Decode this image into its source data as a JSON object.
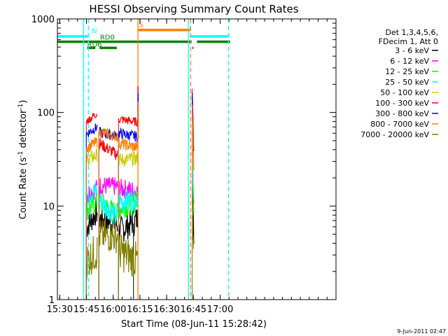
{
  "chart_data": {
    "type": "line",
    "title": "HESSI Observing Summary Count Rates",
    "xlabel": "Start Time (08-Jun-11 15:28:42)",
    "ylabel_main": "Count Rate (s",
    "ylabel_sup1": "-1",
    "ylabel_mid": " detector",
    "ylabel_sup2": "-1",
    "ylabel_end": ")",
    "y_scale": "log",
    "xlim_min": [
      928.7,
      1085
    ],
    "ylim": [
      1,
      1000
    ],
    "x_ticks": [
      {
        "label": "15:30",
        "value": 930
      },
      {
        "label": "15:45",
        "value": 945
      },
      {
        "label": "16:00",
        "value": 960
      },
      {
        "label": "16:15",
        "value": 975
      },
      {
        "label": "16:30",
        "value": 990
      },
      {
        "label": "16:45",
        "value": 1005
      },
      {
        "label": "17:00",
        "value": 1020
      }
    ],
    "y_ticks": [
      {
        "label": "1",
        "value": 1
      },
      {
        "label": "10",
        "value": 10
      },
      {
        "label": "100",
        "value": 100
      },
      {
        "label": "1000",
        "value": 1000
      }
    ],
    "legend": {
      "placement": "right",
      "header": [
        "Det 1,3,4,5,6,",
        "FDecim 1, Att 0"
      ]
    },
    "series": [
      {
        "name": "3 - 6 keV",
        "color": "#000000",
        "segments": [
          {
            "x": [
              944.9,
              951.0
            ],
            "y": [
              5.8,
              8.8
            ]
          },
          {
            "x": [
              952.0,
              962.4
            ],
            "y": [
              7.4,
              6.3
            ]
          },
          {
            "x": [
              963.0,
              971.2
            ],
            "y": [
              5.3,
              6.8
            ]
          },
          {
            "x": [
              971.4,
              973.6
            ],
            "y": [
              6.5,
              7.4
            ]
          },
          {
            "x": [
              1004.3,
              1005.2
            ],
            "y": [
              25,
              4.5
            ]
          }
        ]
      },
      {
        "name": "6 - 12 keV",
        "color": "#ff00ff",
        "segments": [
          {
            "x": [
              944.9,
              951.0
            ],
            "y": [
              13.2,
              15.6
            ]
          },
          {
            "x": [
              952.0,
              962.4
            ],
            "y": [
              16.6,
              16.0
            ]
          },
          {
            "x": [
              963.0,
              973.6
            ],
            "y": [
              15.5,
              14.4
            ]
          },
          {
            "x": [
              1004.3,
              1005.2
            ],
            "y": [
              43,
              12
            ]
          }
        ]
      },
      {
        "name": "12 - 25 keV",
        "color": "#00ff00",
        "segments": [
          {
            "x": [
              944.9,
              951.0
            ],
            "y": [
              9.0,
              11.2
            ]
          },
          {
            "x": [
              952.0,
              962.4
            ],
            "y": [
              10.8,
              8.2
            ]
          },
          {
            "x": [
              963.0,
              973.6
            ],
            "y": [
              9.4,
              11.0
            ]
          },
          {
            "x": [
              1004.3,
              1005.2
            ],
            "y": [
              35,
              9
            ]
          }
        ]
      },
      {
        "name": "25 - 50 keV",
        "color": "#00ffff",
        "segments": [
          {
            "x": [
              944.9,
              951.0
            ],
            "y": [
              13.0,
              14.8
            ]
          },
          {
            "x": [
              952.0,
              962.4
            ],
            "y": [
              11.9,
              7.5
            ]
          },
          {
            "x": [
              963.0,
              973.6
            ],
            "y": [
              11.2,
              12.0
            ]
          },
          {
            "x": [
              1004.3,
              1005.2
            ],
            "y": [
              40,
              11
            ]
          }
        ]
      },
      {
        "name": "50 - 100 keV",
        "color": "#cccc00",
        "segments": [
          {
            "x": [
              944.9,
              951.0
            ],
            "y": [
              31,
              35
            ]
          },
          {
            "x": [
              952.0,
              962.4
            ],
            "y": [
              62,
              59
            ]
          },
          {
            "x": [
              963.0,
              973.6
            ],
            "y": [
              31,
              32
            ]
          },
          {
            "x": [
              1004.3,
              1005.2
            ],
            "y": [
              95,
              23
            ]
          }
        ]
      },
      {
        "name": "100 - 300 keV",
        "color": "#ff0000",
        "segments": [
          {
            "x": [
              944.9,
              951.0
            ],
            "y": [
              80,
              98
            ]
          },
          {
            "x": [
              952.0,
              962.4
            ],
            "y": [
              47,
              35
            ]
          },
          {
            "x": [
              963.0,
              973.6
            ],
            "y": [
              85,
              79
            ]
          },
          {
            "x": [
              1004.3,
              1005.2
            ],
            "y": [
              180,
              40
            ]
          }
        ]
      },
      {
        "name": "300 - 800 keV",
        "color": "#0000ff",
        "segments": [
          {
            "x": [
              944.9,
              951.0
            ],
            "y": [
              59,
              70
            ]
          },
          {
            "x": [
              952.0,
              962.4
            ],
            "y": [
              61,
              56
            ]
          },
          {
            "x": [
              963.0,
              973.6
            ],
            "y": [
              60,
              55
            ]
          },
          {
            "x": [
              1004.3,
              1005.2
            ],
            "y": [
              160,
              36
            ]
          }
        ]
      },
      {
        "name": "800 - 7000 keV",
        "color": "#ff8000",
        "segments": [
          {
            "x": [
              944.9,
              951.0
            ],
            "y": [
              42,
              48
            ]
          },
          {
            "x": [
              952.0,
              962.4
            ],
            "y": [
              61,
              55
            ]
          },
          {
            "x": [
              963.0,
              973.6
            ],
            "y": [
              47,
              42
            ]
          },
          {
            "x": [
              1004.3,
              1005.2
            ],
            "y": [
              120,
              25
            ]
          }
        ]
      },
      {
        "name": "7000 - 20000 keV",
        "color": "#808000",
        "segments": [
          {
            "x": [
              944.9,
              951.0
            ],
            "y": [
              2.6,
              3.3
            ]
          },
          {
            "x": [
              952.0,
              962.4
            ],
            "y": [
              4.8,
              4.7
            ]
          },
          {
            "x": [
              963.0,
              973.6
            ],
            "y": [
              3.3,
              2.6
            ]
          },
          {
            "x": [
              1004.3,
              1005.2
            ],
            "y": [
              7,
              2.5
            ]
          }
        ]
      }
    ],
    "spikes": [
      {
        "x": 973.9,
        "y": 190,
        "color": "#ff0000"
      },
      {
        "x": 974.0,
        "y": 160,
        "color": "#0000ff"
      },
      {
        "x": 974.1,
        "y": 130,
        "color": "#ff8000"
      }
    ],
    "vlines": [
      {
        "x": 943.4,
        "color": "#00ffff",
        "style": "solid"
      },
      {
        "x": 946.1,
        "color": "#00ffff",
        "style": "dashed"
      },
      {
        "x": 973.9,
        "color": "#ff8000",
        "style": "solid"
      },
      {
        "x": 1002.2,
        "color": "#00ffff",
        "style": "solid"
      },
      {
        "x": 1003.4,
        "color": "#ff8000",
        "style": "dashed"
      },
      {
        "x": 1024.7,
        "color": "#00ffff",
        "style": "dashed"
      }
    ],
    "state_bars": [
      {
        "label": "N",
        "color": "#00ffff",
        "level": 650,
        "segments": [
          [
            928.7,
            946.1
          ],
          [
            1003.4,
            1024.7
          ]
        ]
      },
      {
        "label": "S",
        "color": "#ff8000",
        "level": 760,
        "segments": [
          [
            973.9,
            1003.4
          ]
        ]
      },
      {
        "label": "RD0",
        "color": "#008000",
        "level": 570,
        "segments": [
          [
            928.7,
            1004.0
          ],
          [
            1007.0,
            1025.6
          ]
        ]
      },
      {
        "label": "RD6",
        "color": "#008000",
        "level": 490,
        "segments": [
          [
            945.4,
            950.0
          ],
          [
            952.4,
            962.0
          ],
          [
            1004.4,
            1005.0
          ]
        ]
      }
    ],
    "state_labels": [
      {
        "text": "N",
        "x": 948.0,
        "y": 700,
        "color": "#00ffff"
      },
      {
        "text": "S",
        "x": 974.4,
        "y": 820,
        "color": "#ff8000"
      },
      {
        "text": "RD0",
        "x": 952.6,
        "y": 600,
        "color": "#008000"
      },
      {
        "text": "RD6",
        "x": 945.4,
        "y": 500,
        "color": "#008000"
      }
    ]
  },
  "footer_stamp": "9-Jun-2011 02:47"
}
